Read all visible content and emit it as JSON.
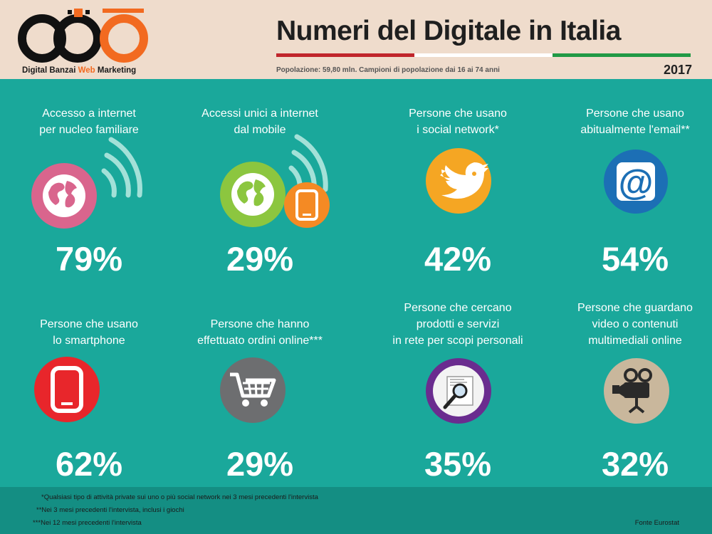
{
  "header": {
    "logo_brand": "Digital Banzai ",
    "logo_accent": "Web",
    "logo_suffix": " Marketing",
    "title": "Numeri del Digitale in Italia",
    "subtitle": "Popolazione: 59,80 mln. Campioni di popolazione dai 16 ai 74 anni",
    "year": "2017",
    "flag_colors": [
      "#c0262c",
      "#ffffff",
      "#219a45"
    ]
  },
  "stats": [
    {
      "line1": "Accesso a internet",
      "line2": "per nucleo familiare",
      "line3": "",
      "value": "79%",
      "icon": "globe-wifi-icon",
      "color": "#d9658d"
    },
    {
      "line1": "Accessi unici a internet",
      "line2": "dal mobile",
      "line3": "",
      "value": "29%",
      "icon": "globe-mobile-icon",
      "color": "#8cc63f"
    },
    {
      "line1": "Persone che usano",
      "line2": "i social network*",
      "line3": "",
      "value": "42%",
      "icon": "twitter-bird-icon",
      "color": "#f5a623"
    },
    {
      "line1": "Persone che usano",
      "line2": "abitualmente l'email**",
      "line3": "",
      "value": "54%",
      "icon": "at-sign-icon",
      "color": "#1c6fb5"
    },
    {
      "line1": "Persone che usano",
      "line2": "lo smartphone",
      "line3": "",
      "value": "62%",
      "icon": "smartphone-icon",
      "color": "#e8262b"
    },
    {
      "line1": "Persone che hanno",
      "line2": "effettuato ordini online***",
      "line3": "",
      "value": "29%",
      "icon": "shopping-cart-icon",
      "color": "#6d6e70"
    },
    {
      "line1": "Persone che cercano",
      "line2": "prodotti e servizi",
      "line3": "in rete per scopi personali",
      "value": "35%",
      "icon": "magnifier-icon",
      "color": "#6a2c8f"
    },
    {
      "line1": "Persone che guardano",
      "line2": "video o contenuti",
      "line3": "multimediali online",
      "value": "32%",
      "icon": "video-camera-icon",
      "color": "#c9b79c"
    }
  ],
  "footer": {
    "notes": [
      "*Qualsiasi tipo di attività private sui uno o più social network nei 3 mesi precedenti l'intervista",
      "**Nei 3 mesi precedenti l'intervista, inclusi i giochi",
      "***Nei 12 mesi precedenti l'intervista"
    ],
    "source": "Fonte Eurostat"
  }
}
